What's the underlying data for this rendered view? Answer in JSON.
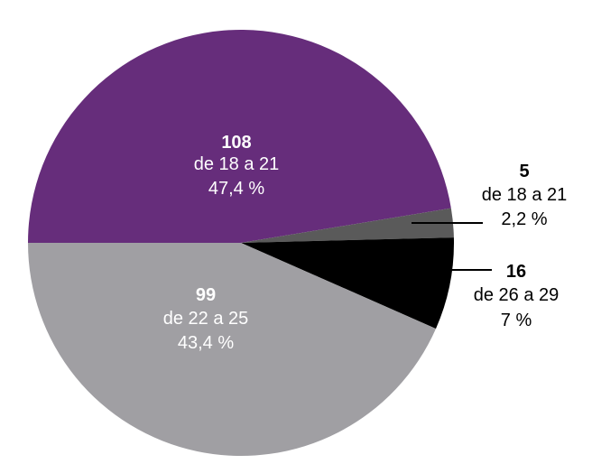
{
  "chart_data": {
    "type": "pie",
    "slices": [
      {
        "count": 108,
        "range": "de 18 a 21",
        "percent": "47,4 %",
        "value": 47.4,
        "color": "#662d7b"
      },
      {
        "count": 5,
        "range": "de 18 a 21",
        "percent": "2,2 %",
        "value": 2.2,
        "color": "#5a5a5a"
      },
      {
        "count": 16,
        "range": "de 26 a 29",
        "percent": "7 %",
        "value": 7,
        "color": "#000000"
      },
      {
        "count": 99,
        "range": "de 22 a 25",
        "percent": "43,4 %",
        "value": 43.4,
        "color": "#a09fa3"
      }
    ]
  },
  "labels": {
    "slice0": {
      "count": "108",
      "range": "de 18 a 21",
      "percent": "47,4 %"
    },
    "slice1": {
      "count": "5",
      "range": "de 18 a 21",
      "percent": "2,2 %"
    },
    "slice2": {
      "count": "16",
      "range": "de 26 a 29",
      "percent": "7 %"
    },
    "slice3": {
      "count": "99",
      "range": "de 22 a 25",
      "percent": "43,4 %"
    }
  }
}
